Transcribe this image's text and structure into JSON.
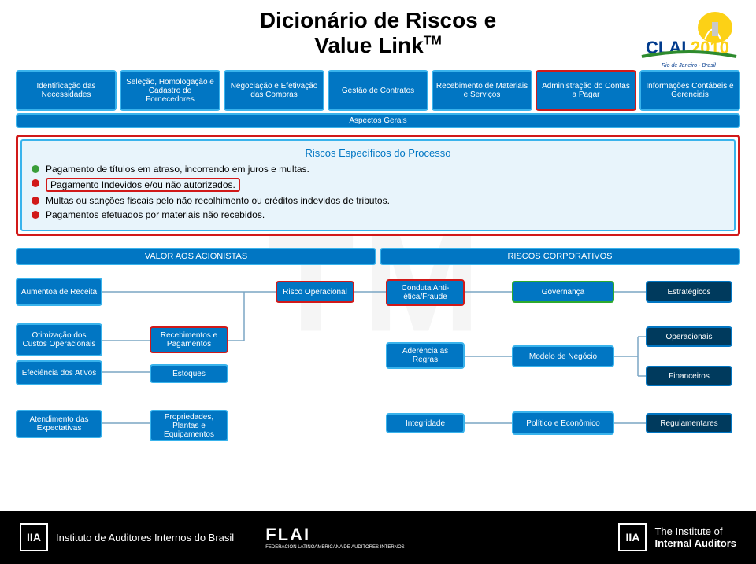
{
  "title_line1": "Dicionário de Riscos e",
  "title_line2": "Value Link",
  "title_tm": "TM",
  "watermark": "TM",
  "process_boxes": [
    {
      "label": "Identificação das Necessidades",
      "hl": false
    },
    {
      "label": "Seleção, Homologação e Cadastro de Fornecedores",
      "hl": false
    },
    {
      "label": "Negociação e Efetivação das Compras",
      "hl": false
    },
    {
      "label": "Gestão de Contratos",
      "hl": false
    },
    {
      "label": "Recebimento de Materiais e Serviços",
      "hl": false
    },
    {
      "label": "Administração do Contas a Pagar",
      "hl": true
    },
    {
      "label": "Informações Contábeis e Gerenciais",
      "hl": false
    }
  ],
  "aspects_label": "Aspectos Gerais",
  "risks": {
    "title": "Riscos Específicos do Processo",
    "items": [
      {
        "color": "g",
        "text": "Pagamento de títulos em atraso, incorrendo em juros e multas.",
        "boxed": false
      },
      {
        "color": "r",
        "text": "Pagamento Indevidos e/ou não autorizados.",
        "boxed": true
      },
      {
        "color": "r",
        "text": "Multas ou sanções fiscais pelo não recolhimento ou créditos indevidos de tributos.",
        "boxed": false
      },
      {
        "color": "r",
        "text": "Pagamentos efetuados por materiais não recebidos.",
        "boxed": false
      }
    ]
  },
  "section_left": "VALOR AOS ACIONISTAS",
  "section_right": "RISCOS CORPORATIVOS",
  "nodes": {
    "aumento": "Aumentoa de Receita",
    "otim": "Otimização dos Custos Operacionais",
    "efic": "Efeciência dos Ativos",
    "atend": "Atendimento das Expectativas",
    "receb": "Recebimentos e Pagamentos",
    "estoq": "Estoques",
    "prop": "Propriedades, Plantas e Equipamentos",
    "riscoop": "Risco Operacional",
    "conduta": "Conduta Anti-ética/Fraude",
    "ader": "Aderência as Regras",
    "integ": "Integridade",
    "gov": "Governança",
    "modelo": "Modelo de Negócio",
    "polit": "Político e Econômico",
    "estrat": "Estratégicos",
    "oper": "Operacionais",
    "fin": "Financeiros",
    "reg": "Regulamentares"
  },
  "footer": {
    "iia_br": "Instituto de Auditores Internos do Brasil",
    "flai": "FLAI",
    "flai_sub": "FEDERACION LATINOAMERICANA DE AUDITORES INTERNOS",
    "iia_global1": "The Institute of",
    "iia_global2": "Internal Auditors"
  },
  "clai": {
    "year": "2010",
    "city": "Rio de Janeiro - Brasil"
  },
  "colors": {
    "blue": "#0176c3",
    "lightblue": "#39b3ec",
    "darkblue": "#003a5d",
    "red": "#d11919",
    "green": "#2eaa2e",
    "line": "#7aa5c4"
  }
}
